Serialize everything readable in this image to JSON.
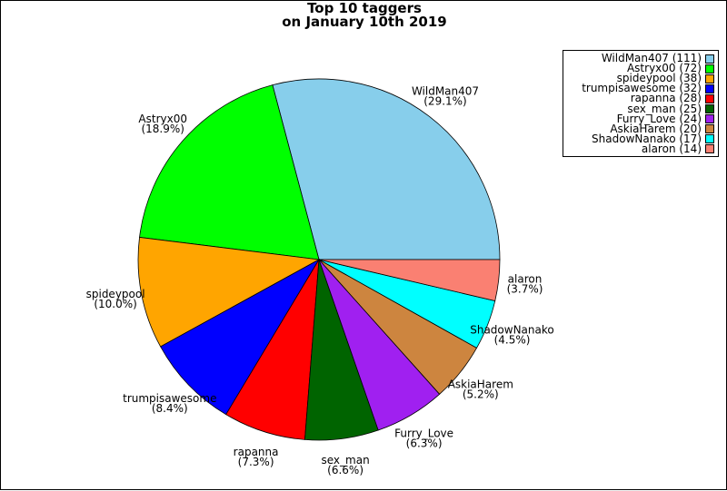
{
  "chart_data": {
    "type": "pie",
    "title": "Top 10 taggers",
    "subtitle": "on January 10th 2019",
    "start_angle_deg": 0,
    "direction": "counterclockwise",
    "legend_position": "top-right",
    "slices": [
      {
        "name": "WildMan407",
        "value": 111,
        "percent": "29.1%",
        "legend": "WildMan407 (111)",
        "color": "#87CEEB"
      },
      {
        "name": "Astryx00",
        "value": 72,
        "percent": "18.9%",
        "legend": "Astryx00 (72)",
        "color": "#00FF00"
      },
      {
        "name": "spideypool",
        "value": 38,
        "percent": "10.0%",
        "legend": "spideypool (38)",
        "color": "#FFA500"
      },
      {
        "name": "trumpisawesome",
        "value": 32,
        "percent": "8.4%",
        "legend": "trumpisawesome (32)",
        "color": "#0000FF"
      },
      {
        "name": "rapanna",
        "value": 28,
        "percent": "7.3%",
        "legend": "rapanna (28)",
        "color": "#FF0000"
      },
      {
        "name": "sex_man",
        "value": 25,
        "percent": "6.6%",
        "legend": "sex_man (25)",
        "color": "#006400"
      },
      {
        "name": "Furry_Love",
        "value": 24,
        "percent": "6.3%",
        "legend": "Furry_Love (24)",
        "color": "#A020F0"
      },
      {
        "name": "AskiaHarem",
        "value": 20,
        "percent": "5.2%",
        "legend": "AskiaHarem (20)",
        "color": "#CD853F"
      },
      {
        "name": "ShadowNanako",
        "value": 17,
        "percent": "4.5%",
        "legend": "ShadowNanako (17)",
        "color": "#00FFFF"
      },
      {
        "name": "alaron",
        "value": 14,
        "percent": "3.7%",
        "legend": "alaron (14)",
        "color": "#FA8072"
      }
    ]
  }
}
